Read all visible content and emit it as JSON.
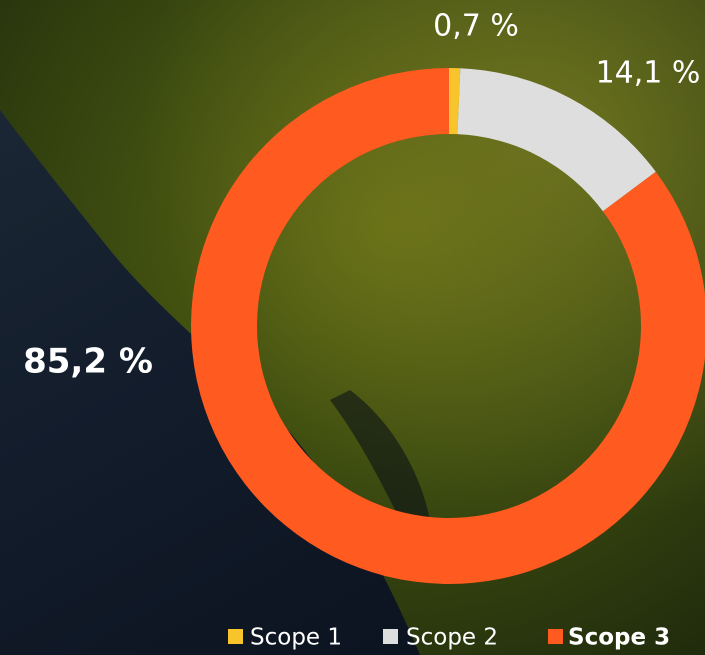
{
  "chart_data": {
    "type": "donut",
    "categories": [
      "Scope 1",
      "Scope 2",
      "Scope 3"
    ],
    "values": [
      0.7,
      14.1,
      85.2
    ],
    "value_labels": [
      "0,7 %",
      "14,1 %",
      "85,2 %"
    ],
    "colors": [
      "#f7c52b",
      "#dedede",
      "#ff5a1f"
    ],
    "legend": "bottom-right"
  }
}
